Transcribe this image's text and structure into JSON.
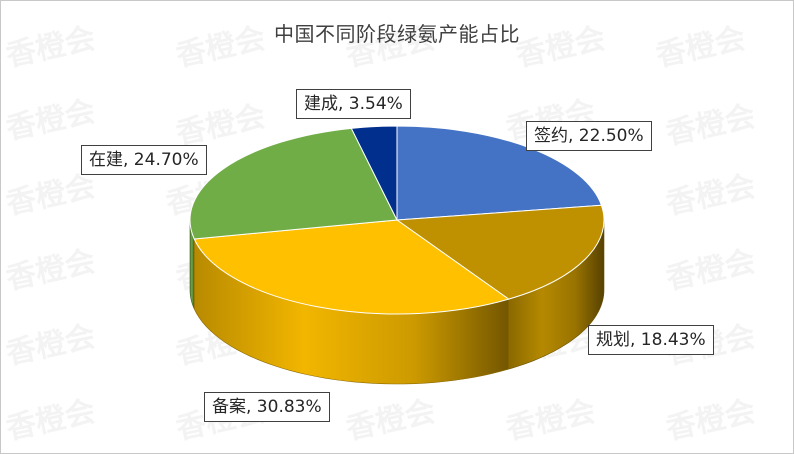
{
  "watermark": "香橙会",
  "chart_data": {
    "type": "pie",
    "title": "中国不同阶段绿氨产能占比",
    "style": "3d",
    "unit": "%",
    "slices": [
      {
        "name": "签约",
        "value": 22.5,
        "label": "签约, 22.50%",
        "color": "#4472C4"
      },
      {
        "name": "规划",
        "value": 18.43,
        "label": "规划, 18.43%",
        "color": "#BF9000"
      },
      {
        "name": "备案",
        "value": 30.83,
        "label": "备案, 30.83%",
        "color": "#FFC000"
      },
      {
        "name": "在建",
        "value": 24.7,
        "label": "在建, 24.70%",
        "color": "#70AD47"
      },
      {
        "name": "建成",
        "value": 3.54,
        "label": "建成, 3.54%",
        "color": "#002F8E"
      }
    ]
  }
}
